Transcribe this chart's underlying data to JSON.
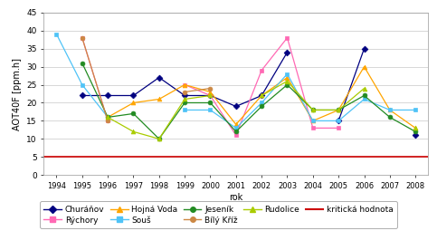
{
  "years": [
    1994,
    1995,
    1996,
    1997,
    1998,
    1999,
    2000,
    2001,
    2002,
    2003,
    2004,
    2005,
    2006,
    2007,
    2008
  ],
  "series": [
    {
      "name": "Churáňov",
      "color": "#000080",
      "marker": "D",
      "values": [
        null,
        22,
        22,
        22,
        27,
        22,
        22,
        19,
        22,
        34,
        null,
        15,
        35,
        null,
        11
      ]
    },
    {
      "name": "Rýchory",
      "color": "#FF69B4",
      "marker": "s",
      "values": [
        null,
        38,
        15,
        null,
        null,
        25,
        22,
        11,
        29,
        38,
        13,
        13,
        null,
        null,
        null
      ]
    },
    {
      "name": "Hojná Voda",
      "color": "#FFA500",
      "marker": "^",
      "values": [
        null,
        null,
        16,
        20,
        21,
        25,
        23,
        14,
        22,
        27,
        15,
        18,
        30,
        18,
        13
      ]
    },
    {
      "name": "Souš",
      "color": "#4FC3F7",
      "marker": "s",
      "values": [
        39,
        25,
        16,
        null,
        null,
        18,
        18,
        13,
        20,
        28,
        15,
        15,
        21,
        18,
        18
      ]
    },
    {
      "name": "Jeseník",
      "color": "#228B22",
      "marker": "o",
      "values": [
        null,
        31,
        16,
        17,
        10,
        20,
        20,
        12,
        19,
        25,
        18,
        18,
        22,
        16,
        12
      ]
    },
    {
      "name": "Bílý Kříž",
      "color": "#CC8844",
      "marker": "o",
      "values": [
        null,
        38,
        15,
        null,
        null,
        23,
        24,
        null,
        null,
        null,
        null,
        null,
        null,
        null,
        null
      ]
    },
    {
      "name": "Rudolice",
      "color": "#AACC00",
      "marker": "^",
      "values": [
        null,
        null,
        16,
        12,
        10,
        21,
        22,
        null,
        22,
        26,
        18,
        18,
        24,
        null,
        13
      ]
    }
  ],
  "critical_value": 5,
  "critical_color": "#CC0000",
  "ylabel": "AOT40F [ppm.h]",
  "xlabel": "rok",
  "ylim": [
    0,
    45
  ],
  "yticks": [
    0,
    5,
    10,
    15,
    20,
    25,
    30,
    35,
    40,
    45
  ],
  "bg_color": "#FFFFFF",
  "grid_color": "#C8C8C8"
}
